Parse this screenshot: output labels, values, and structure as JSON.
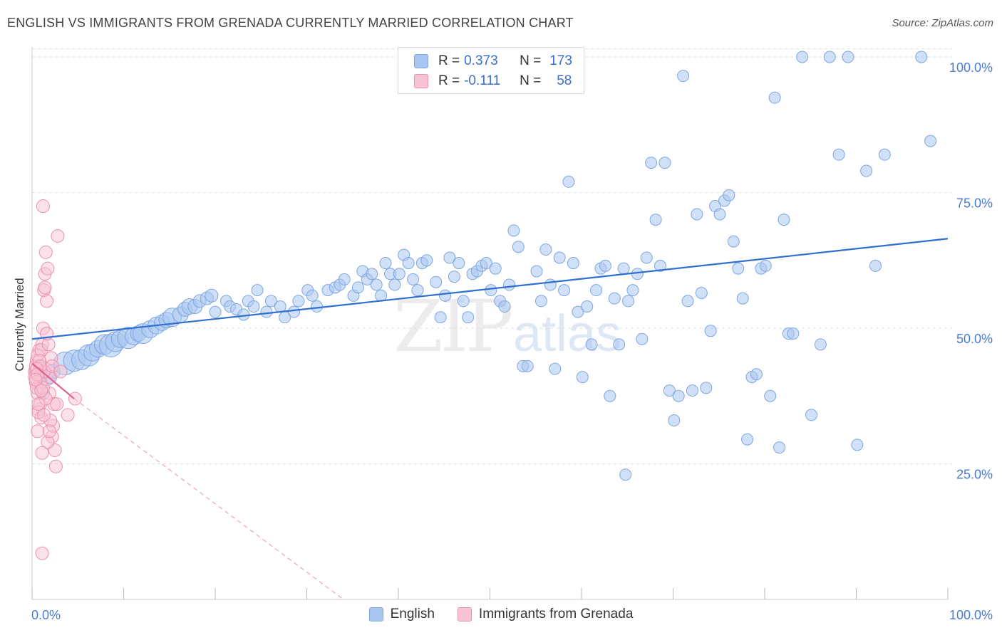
{
  "title": "ENGLISH VS IMMIGRANTS FROM GRENADA CURRENTLY MARRIED CORRELATION CHART",
  "source": "Source: ZipAtlas.com",
  "watermark": {
    "zip": "ZIP",
    "atlas": "atlas"
  },
  "legend": {
    "rows": [
      {
        "r_label": "R =",
        "r_value": "0.373",
        "n_label": "N =",
        "n_value": "173",
        "color": "#a9c6f0",
        "border": "#7ea6e0"
      },
      {
        "r_label": "R =",
        "r_value": "-0.111",
        "n_label": "N =",
        "n_value": "58",
        "color": "#f8c4d4",
        "border": "#ec90ad"
      }
    ]
  },
  "bottom_legend": [
    {
      "label": "English",
      "color": "#a9c6f0",
      "border": "#7ea6e0"
    },
    {
      "label": "Immigrants from Grenada",
      "color": "#f8c4d4",
      "border": "#ec90ad"
    }
  ],
  "chart_data": {
    "type": "scatter",
    "ylabel": "Currently Married",
    "xlim": [
      0,
      100
    ],
    "ylim": [
      0,
      103
    ],
    "y_ticks": [
      {
        "value": 25,
        "label": "25.0%"
      },
      {
        "value": 50,
        "label": "50.0%"
      },
      {
        "value": 75,
        "label": "75.0%"
      },
      {
        "value": 100,
        "label": "100.0%"
      }
    ],
    "x_tick_labels": [
      {
        "value": 0,
        "label": "0.0%"
      },
      {
        "value": 100,
        "label": "100.0%"
      }
    ],
    "x_minor_ticks": [
      0,
      10,
      20,
      30,
      40,
      50,
      60,
      70,
      80,
      90,
      100
    ],
    "grid": "horizontal-dashed",
    "series": [
      {
        "name": "English",
        "color": "#a9c6f0",
        "stroke": "#7ea6e0",
        "trend": {
          "x0": 0,
          "y0": 48,
          "x1": 100,
          "y1": 66.5,
          "color": "#2f6fd0"
        },
        "points": [
          [
            0.8,
            42,
            14
          ],
          [
            1.2,
            38,
            9
          ],
          [
            1.6,
            41,
            12
          ],
          [
            2.3,
            42,
            10
          ],
          [
            3.6,
            43.5,
            16
          ],
          [
            4.6,
            44,
            15
          ],
          [
            5.4,
            44.2,
            14
          ],
          [
            6.2,
            45,
            15
          ],
          [
            6.6,
            45.5,
            12
          ],
          [
            7.2,
            46.2,
            12
          ],
          [
            7.9,
            47,
            14
          ],
          [
            8.6,
            46.8,
            16
          ],
          [
            9.1,
            47.5,
            14
          ],
          [
            9.6,
            48,
            12
          ],
          [
            10.5,
            48.2,
            15
          ],
          [
            11.1,
            48.5,
            12
          ],
          [
            11.6,
            49,
            11
          ],
          [
            12.1,
            49,
            14
          ],
          [
            12.9,
            49.8,
            12
          ],
          [
            13.6,
            50.5,
            12
          ],
          [
            14.2,
            51,
            11
          ],
          [
            14.7,
            51.5,
            11
          ],
          [
            15.3,
            52,
            13
          ],
          [
            16.2,
            52.5,
            11
          ],
          [
            16.7,
            53.5,
            10
          ],
          [
            17.2,
            54,
            11
          ],
          [
            17.8,
            54,
            10
          ],
          [
            18.3,
            55,
            9
          ],
          [
            19.1,
            55.5,
            9
          ],
          [
            19.6,
            56,
            9
          ],
          [
            20,
            53,
            8
          ],
          [
            21.2,
            55,
            8
          ],
          [
            21.6,
            54,
            8
          ],
          [
            22.3,
            53.5,
            8
          ],
          [
            23.1,
            52.5,
            8
          ],
          [
            23.6,
            55,
            8
          ],
          [
            24.2,
            54,
            8
          ],
          [
            24.6,
            57,
            8
          ],
          [
            25.6,
            53,
            8
          ],
          [
            26.1,
            55,
            8
          ],
          [
            27.1,
            54,
            8
          ],
          [
            27.6,
            52,
            8
          ],
          [
            28.6,
            53,
            8
          ],
          [
            29.1,
            55,
            8
          ],
          [
            30.1,
            57,
            8
          ],
          [
            30.6,
            56,
            8
          ],
          [
            31.1,
            54,
            8
          ],
          [
            32.3,
            57,
            8
          ],
          [
            33.1,
            57.5,
            8
          ],
          [
            33.6,
            58,
            8
          ],
          [
            34.1,
            59,
            8
          ],
          [
            35.1,
            56,
            8
          ],
          [
            35.6,
            57.5,
            8
          ],
          [
            36.1,
            60.5,
            8
          ],
          [
            36.6,
            59,
            8
          ],
          [
            37.1,
            60,
            8
          ],
          [
            37.6,
            58,
            8
          ],
          [
            38.1,
            56,
            8
          ],
          [
            38.6,
            62,
            8
          ],
          [
            39.1,
            60,
            8
          ],
          [
            39.6,
            58,
            8
          ],
          [
            40.1,
            60,
            8
          ],
          [
            40.6,
            63.5,
            8
          ],
          [
            41.1,
            62,
            8
          ],
          [
            41.6,
            59,
            8
          ],
          [
            42.1,
            57,
            8
          ],
          [
            42.6,
            62,
            8
          ],
          [
            43.1,
            62.5,
            8
          ],
          [
            44.1,
            58.5,
            8
          ],
          [
            44.6,
            52,
            8
          ],
          [
            45.1,
            56,
            8
          ],
          [
            45.6,
            63,
            8
          ],
          [
            46.1,
            59.5,
            8
          ],
          [
            46.6,
            62,
            8
          ],
          [
            47.1,
            55,
            8
          ],
          [
            47.6,
            52,
            8
          ],
          [
            48.1,
            60,
            8
          ],
          [
            48.6,
            60.5,
            8
          ],
          [
            49.1,
            61.5,
            8
          ],
          [
            49.6,
            62,
            8
          ],
          [
            50.1,
            57,
            8
          ],
          [
            50.6,
            61,
            8
          ],
          [
            51.1,
            55,
            8
          ],
          [
            51.6,
            54,
            8
          ],
          [
            52.1,
            58,
            8
          ],
          [
            52.6,
            68,
            8
          ],
          [
            53.1,
            65,
            8
          ],
          [
            53.6,
            43,
            8
          ],
          [
            54.1,
            43,
            8
          ],
          [
            55.1,
            60.5,
            8
          ],
          [
            55.6,
            55,
            8
          ],
          [
            56.1,
            64.5,
            8
          ],
          [
            56.6,
            58,
            8
          ],
          [
            57.1,
            42.5,
            8
          ],
          [
            57.6,
            63,
            8
          ],
          [
            58.1,
            57,
            8
          ],
          [
            58.6,
            77,
            8
          ],
          [
            59.1,
            62,
            8
          ],
          [
            59.6,
            53,
            8
          ],
          [
            60.1,
            41,
            8
          ],
          [
            60.6,
            54,
            8
          ],
          [
            61.1,
            47,
            8
          ],
          [
            61.6,
            57,
            8
          ],
          [
            62.1,
            61,
            8
          ],
          [
            62.6,
            61.5,
            8
          ],
          [
            63.1,
            37.5,
            8
          ],
          [
            63.6,
            55.5,
            8
          ],
          [
            64.1,
            47,
            8
          ],
          [
            64.6,
            61,
            8
          ],
          [
            65.1,
            55,
            8
          ],
          [
            65.6,
            57,
            8
          ],
          [
            66.1,
            60,
            8
          ],
          [
            66.6,
            48,
            8
          ],
          [
            67.1,
            63,
            8
          ],
          [
            67.6,
            80.5,
            8
          ],
          [
            68.1,
            70,
            8
          ],
          [
            68.6,
            61.5,
            8
          ],
          [
            69.1,
            80.5,
            8
          ],
          [
            69.6,
            38.5,
            8
          ],
          [
            70.1,
            33,
            8
          ],
          [
            70.6,
            37.5,
            8
          ],
          [
            71.1,
            96.5,
            8
          ],
          [
            71.6,
            55,
            8
          ],
          [
            72.1,
            38.5,
            8
          ],
          [
            72.6,
            71,
            8
          ],
          [
            73.1,
            56.5,
            8
          ],
          [
            73.6,
            39,
            8
          ],
          [
            74.1,
            49.5,
            8
          ],
          [
            74.6,
            72.5,
            8
          ],
          [
            75.1,
            71,
            8
          ],
          [
            75.6,
            73.5,
            8
          ],
          [
            76.1,
            74.5,
            8
          ],
          [
            76.6,
            66,
            8
          ],
          [
            77.1,
            61,
            8
          ],
          [
            77.6,
            55.5,
            8
          ],
          [
            78.1,
            29.5,
            8
          ],
          [
            78.6,
            41,
            8
          ],
          [
            79.1,
            41.5,
            8
          ],
          [
            79.6,
            61,
            8
          ],
          [
            80.1,
            61.5,
            8
          ],
          [
            80.6,
            37.5,
            8
          ],
          [
            81.1,
            92.5,
            8
          ],
          [
            81.6,
            28,
            8
          ],
          [
            82.1,
            70,
            8
          ],
          [
            82.6,
            49,
            8
          ],
          [
            83.1,
            49,
            8
          ],
          [
            84.1,
            100,
            8
          ],
          [
            85.1,
            34,
            8
          ],
          [
            86.1,
            47,
            8
          ],
          [
            87.1,
            100,
            8
          ],
          [
            88.1,
            82,
            8
          ],
          [
            89.1,
            100,
            8
          ],
          [
            90.1,
            28.5,
            8
          ],
          [
            91.1,
            79,
            8
          ],
          [
            92.1,
            61.5,
            8
          ],
          [
            93.1,
            82,
            8
          ],
          [
            97.1,
            100,
            8
          ],
          [
            98.1,
            84.5,
            8
          ],
          [
            64.8,
            23,
            8
          ]
        ]
      },
      {
        "name": "Immigrants from Grenada",
        "color": "#f8c4d4",
        "stroke": "#ec90ad",
        "trend": {
          "x0": 0,
          "y0": 43.5,
          "x1": 4.6,
          "y1": 37,
          "color": "#e06090",
          "ext_x1": 34,
          "ext_y1": 0
        },
        "points": [
          [
            0.3,
            42,
            9
          ],
          [
            0.4,
            40,
            9
          ],
          [
            0.5,
            44,
            9
          ],
          [
            0.6,
            38,
            9
          ],
          [
            0.7,
            35,
            9
          ],
          [
            0.8,
            46,
            9
          ],
          [
            0.9,
            36,
            9
          ],
          [
            1,
            33.5,
            9
          ],
          [
            1.1,
            47,
            9
          ],
          [
            1.2,
            50,
            9
          ],
          [
            1.3,
            57,
            9
          ],
          [
            1.4,
            60,
            9
          ],
          [
            1.5,
            64,
            9
          ],
          [
            1.6,
            55,
            9
          ],
          [
            1.7,
            61,
            9
          ],
          [
            1.8,
            42,
            9
          ],
          [
            1.9,
            38,
            9
          ],
          [
            2,
            41,
            9
          ],
          [
            2.1,
            44.5,
            9
          ],
          [
            2.2,
            30,
            9
          ],
          [
            2.3,
            32,
            9
          ],
          [
            2.4,
            36,
            9
          ],
          [
            2.5,
            27.5,
            9
          ],
          [
            2.6,
            24.5,
            9
          ],
          [
            1.2,
            72.5,
            9
          ],
          [
            2.8,
            67,
            9
          ],
          [
            1.1,
            8.5,
            9
          ],
          [
            3.9,
            34,
            9
          ],
          [
            4.7,
            37,
            9
          ],
          [
            0.6,
            31,
            9
          ],
          [
            0.7,
            34.5,
            9
          ],
          [
            0.9,
            40,
            9
          ],
          [
            0.5,
            39,
            9
          ],
          [
            0.4,
            43,
            9
          ],
          [
            0.3,
            41,
            9
          ],
          [
            0.6,
            45,
            9
          ],
          [
            1,
            46,
            9
          ],
          [
            1.3,
            42,
            9
          ],
          [
            1.5,
            37,
            9
          ],
          [
            1.7,
            29,
            9
          ],
          [
            2,
            33,
            9
          ],
          [
            1.1,
            27,
            9
          ],
          [
            0.8,
            44,
            9
          ],
          [
            0.9,
            43,
            9
          ],
          [
            1.2,
            39,
            9
          ],
          [
            0.7,
            36,
            9
          ],
          [
            1.8,
            47,
            9
          ],
          [
            2.2,
            43,
            9
          ],
          [
            1.4,
            57.5,
            9
          ],
          [
            1.6,
            49,
            9
          ],
          [
            0.5,
            42.5,
            9
          ],
          [
            0.6,
            41.5,
            9
          ],
          [
            0.4,
            40.5,
            9
          ],
          [
            1,
            38.5,
            9
          ],
          [
            3.1,
            42,
            9
          ],
          [
            2.7,
            36,
            9
          ],
          [
            1.9,
            31,
            9
          ],
          [
            1.3,
            34,
            9
          ]
        ]
      }
    ]
  }
}
